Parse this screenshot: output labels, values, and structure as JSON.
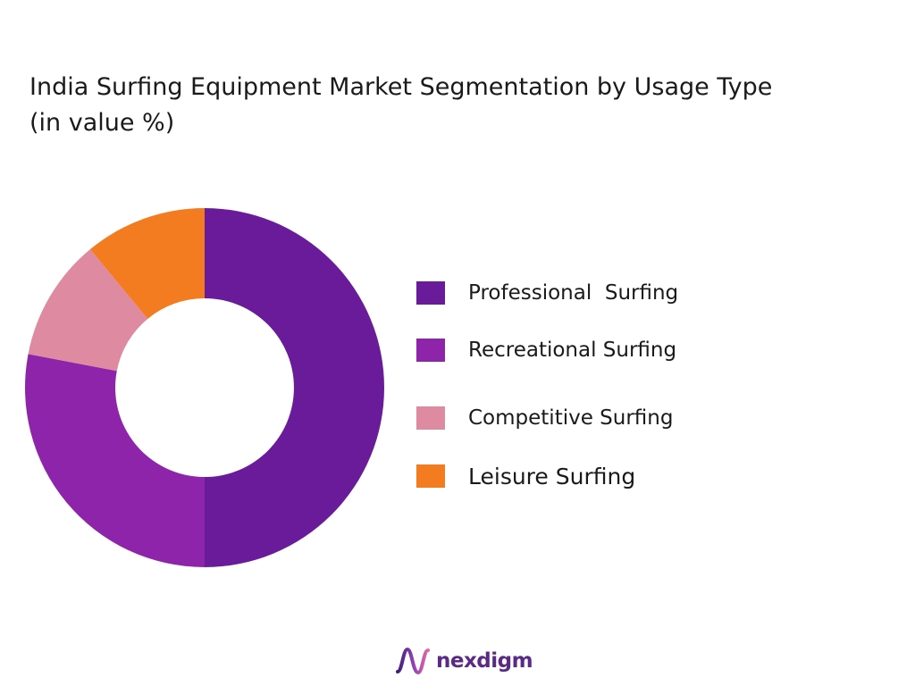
{
  "title": {
    "line1": "India Surfing Equipment Market Segmentation by Usage Type",
    "line2": "(in value %)"
  },
  "chart_data": {
    "type": "pie",
    "donut": true,
    "title": "India Surfing Equipment Market Segmentation by Usage Type (in value %)",
    "categories": [
      "Professional  Surfing",
      "Recreational Surfing",
      "Competitive Surfing",
      "Leisure Surfing"
    ],
    "values": [
      50,
      28,
      11,
      11
    ],
    "colors": [
      "#6a1b9a",
      "#8e24aa",
      "#de8aa0",
      "#f47c20"
    ],
    "legend": "right",
    "start_angle_deg": 0,
    "direction": "clockwise"
  },
  "brand": {
    "name": "nexdigm",
    "logo_icon": "nexdigm-wave-icon",
    "color": "#5a2a86"
  }
}
